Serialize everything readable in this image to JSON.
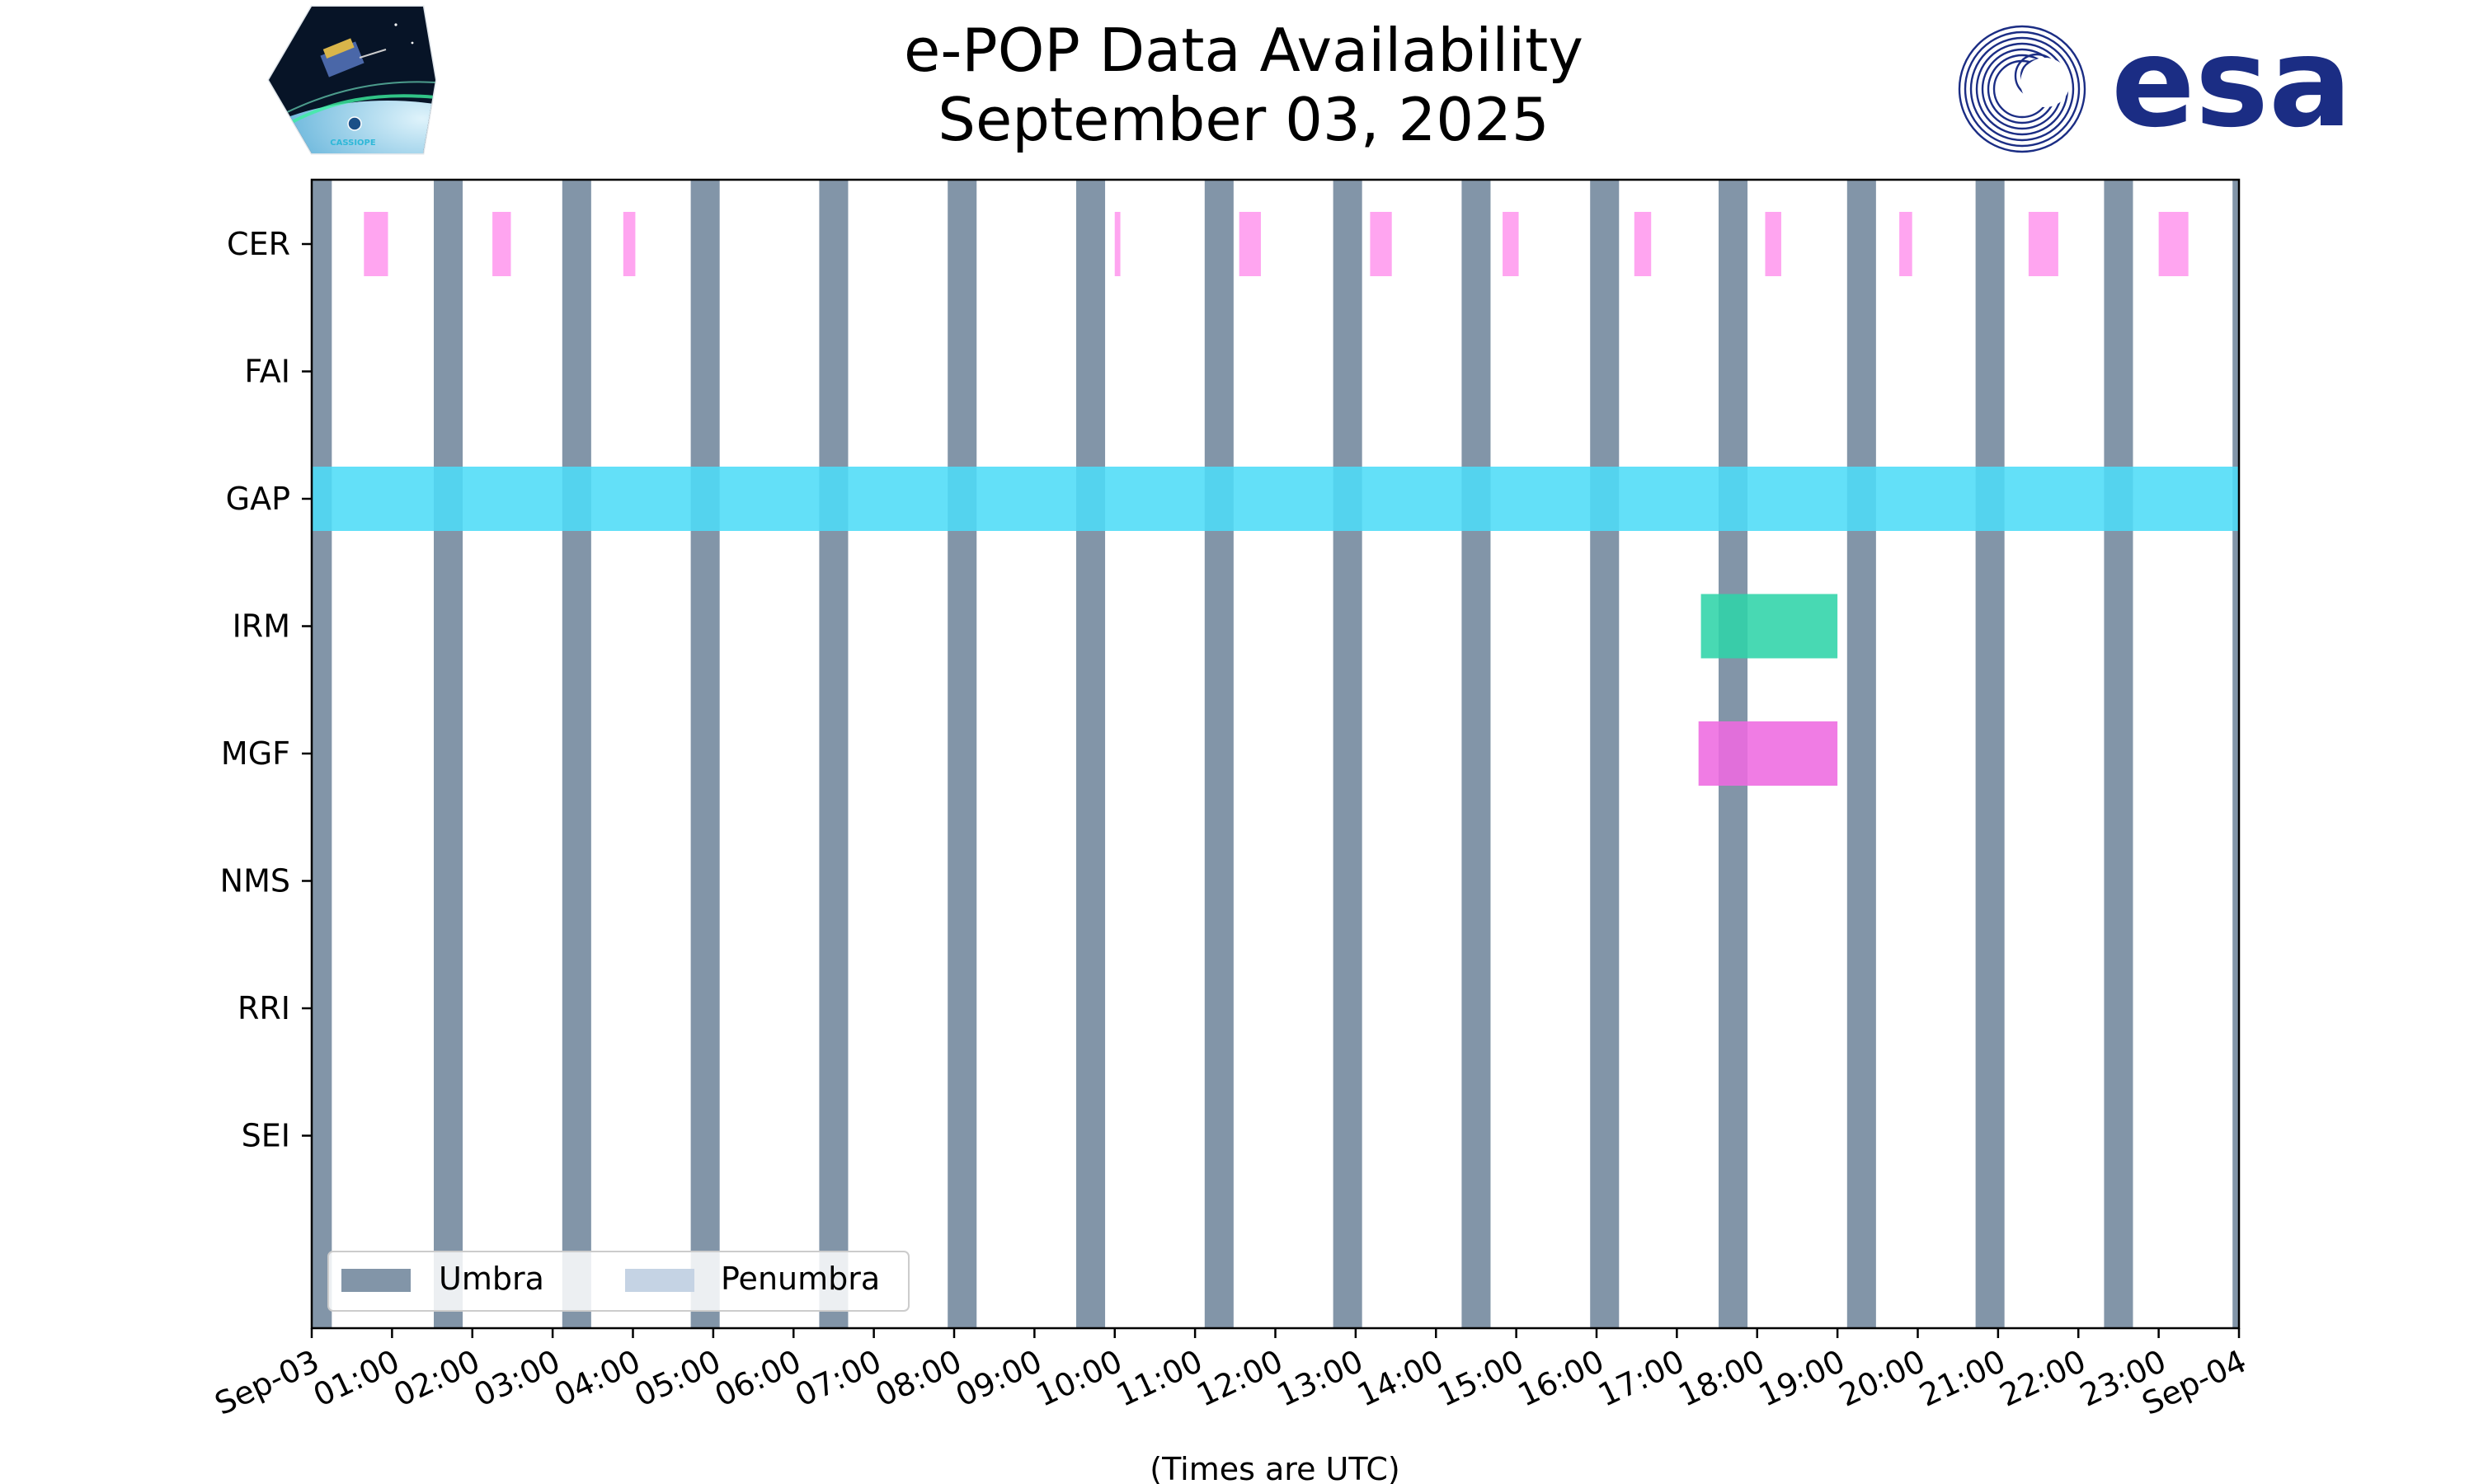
{
  "chart_data": {
    "type": "timeline",
    "title": "e-POP Data Availability",
    "subtitle": "September 03, 2025",
    "xlabel": "(Times are UTC)",
    "x_range_hours": [
      0,
      24
    ],
    "x_tick_labels": [
      "Sep-03",
      "01:00",
      "02:00",
      "03:00",
      "04:00",
      "05:00",
      "06:00",
      "07:00",
      "08:00",
      "09:00",
      "10:00",
      "11:00",
      "12:00",
      "13:00",
      "14:00",
      "15:00",
      "16:00",
      "17:00",
      "18:00",
      "19:00",
      "20:00",
      "21:00",
      "22:00",
      "23:00",
      "Sep-04"
    ],
    "instruments": [
      "CER",
      "FAI",
      "GAP",
      "IRM",
      "MGF",
      "NMS",
      "RRI",
      "SEI"
    ],
    "umbra_color": "#8295a8",
    "penumbra_color": "#c5d3e4",
    "umbra_intervals_hours": [
      [
        0.0,
        0.25
      ],
      [
        1.52,
        1.88
      ],
      [
        3.12,
        3.48
      ],
      [
        4.72,
        5.08
      ],
      [
        6.32,
        6.68
      ],
      [
        7.92,
        8.28
      ],
      [
        9.52,
        9.88
      ],
      [
        11.12,
        11.48
      ],
      [
        12.72,
        13.08
      ],
      [
        14.32,
        14.68
      ],
      [
        15.92,
        16.28
      ],
      [
        17.52,
        17.88
      ],
      [
        19.12,
        19.48
      ],
      [
        20.72,
        21.08
      ],
      [
        22.32,
        22.68
      ],
      [
        23.92,
        24.0
      ]
    ],
    "series": [
      {
        "name": "CER",
        "color": "#ff99ee",
        "intervals_hours": [
          [
            0.65,
            0.95
          ],
          [
            2.25,
            2.48
          ],
          [
            3.88,
            4.03
          ],
          [
            10.0,
            10.07
          ],
          [
            11.55,
            11.82
          ],
          [
            13.18,
            13.45
          ],
          [
            14.83,
            15.03
          ],
          [
            16.47,
            16.68
          ],
          [
            18.1,
            18.3
          ],
          [
            19.77,
            19.93
          ],
          [
            21.38,
            21.75
          ],
          [
            23.0,
            23.37
          ]
        ]
      },
      {
        "name": "FAI",
        "color": "#999999",
        "intervals_hours": []
      },
      {
        "name": "GAP",
        "color": "#4ddcf7",
        "intervals_hours": [
          [
            0.0,
            24.0
          ]
        ]
      },
      {
        "name": "IRM",
        "color": "#2fd4a8",
        "intervals_hours": [
          [
            17.3,
            19.0
          ]
        ]
      },
      {
        "name": "MGF",
        "color": "#ee6ae0",
        "intervals_hours": [
          [
            17.27,
            19.0
          ]
        ]
      },
      {
        "name": "NMS",
        "color": "#999999",
        "intervals_hours": []
      },
      {
        "name": "RRI",
        "color": "#999999",
        "intervals_hours": []
      },
      {
        "name": "SEI",
        "color": "#999999",
        "intervals_hours": []
      }
    ],
    "legend": {
      "position": "lower-left",
      "entries": [
        {
          "label": "Umbra",
          "color": "#8295a8"
        },
        {
          "label": "Penumbra",
          "color": "#c5d3e4"
        }
      ]
    }
  },
  "logos": {
    "cassiope_text": "CASSIOPE",
    "esa_text": "esa",
    "esa_color": "#1b2d84"
  }
}
